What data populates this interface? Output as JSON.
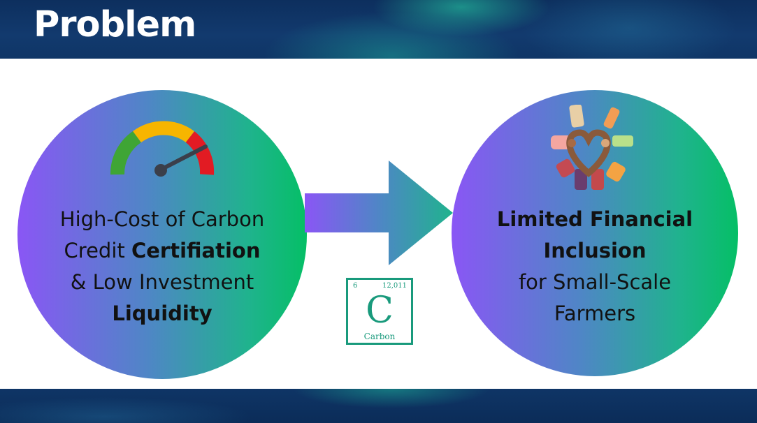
{
  "header": {
    "title": "Problem"
  },
  "left_circle": {
    "line1": "High-Cost of Carbon",
    "line2_prefix": "Credit ",
    "line2_bold": "Certifiation",
    "line3": "& Low Investment",
    "line4_bold": "Liquidity",
    "icon": "speedometer-gauge-icon"
  },
  "right_circle": {
    "line1_bold": "Limited Financial",
    "line2_bold": "Inclusion",
    "line3": "for Small-Scale",
    "line4": "Farmers",
    "icon": "diverse-hands-heart-icon"
  },
  "element_tile": {
    "atomic_number": "6",
    "atomic_mass": "12,011",
    "symbol": "C",
    "name": "Carbon"
  },
  "colors": {
    "band": "#0f3566",
    "circle_start": "#8a56f5",
    "circle_end": "#05bf66",
    "element_border": "#199a7c"
  }
}
